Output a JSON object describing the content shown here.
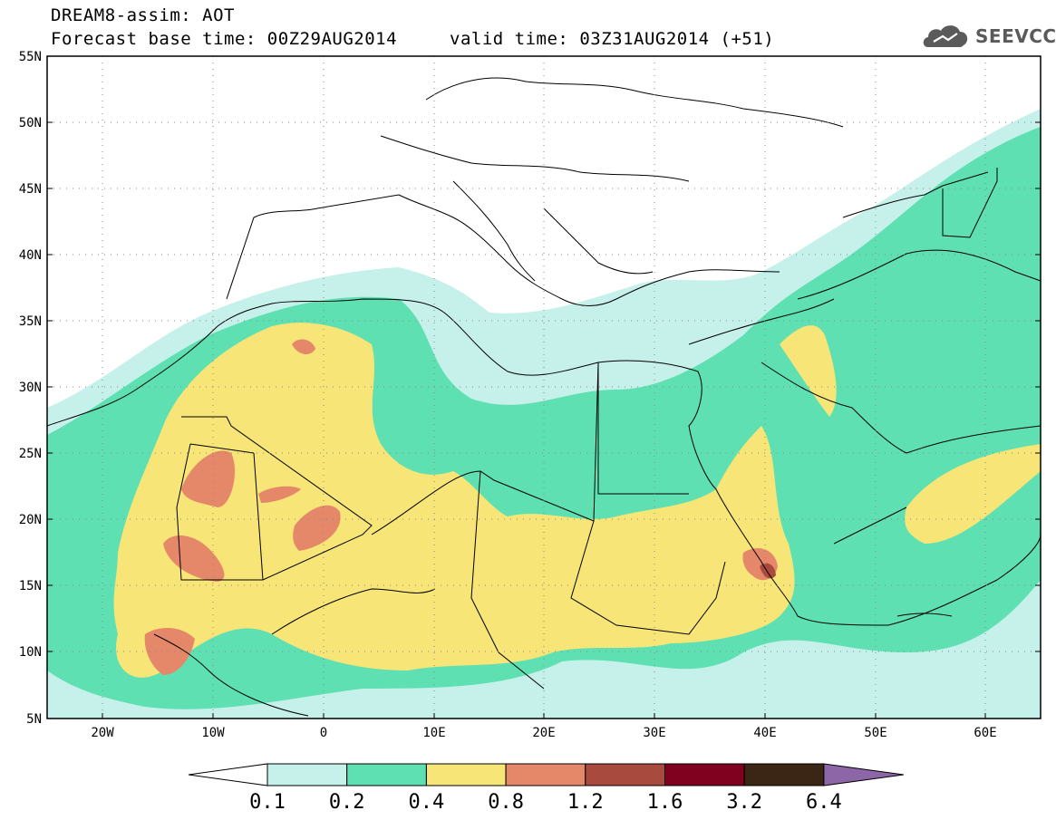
{
  "header": {
    "model_line": "DREAM8-assim: AOT",
    "base_time": "Forecast base time: 00Z29AUG2014",
    "valid_time": "valid time: 03Z31AUG2014 (+51)"
  },
  "logo": {
    "text": "SEEVCCC",
    "icon": "cloud-icon"
  },
  "map": {
    "lon_range": [
      -25,
      65
    ],
    "lat_range": [
      5,
      55
    ],
    "lat_ticks": [
      "55N",
      "50N",
      "45N",
      "40N",
      "35N",
      "30N",
      "25N",
      "20N",
      "15N",
      "10N",
      "5N"
    ],
    "lon_ticks": [
      "20W",
      "10W",
      "0",
      "10E",
      "20E",
      "30E",
      "40E",
      "50E",
      "60E"
    ],
    "grid": "dotted"
  },
  "colorbar": {
    "levels": [
      "0.1",
      "0.2",
      "0.4",
      "0.8",
      "1.2",
      "1.6",
      "3.2",
      "6.4"
    ],
    "colors": [
      "#ffffff",
      "#c6f0ea",
      "#5fe0b2",
      "#f7e577",
      "#e5886a",
      "#a84a3d",
      "#800020",
      "#3b2514",
      "#8d66a8"
    ]
  }
}
